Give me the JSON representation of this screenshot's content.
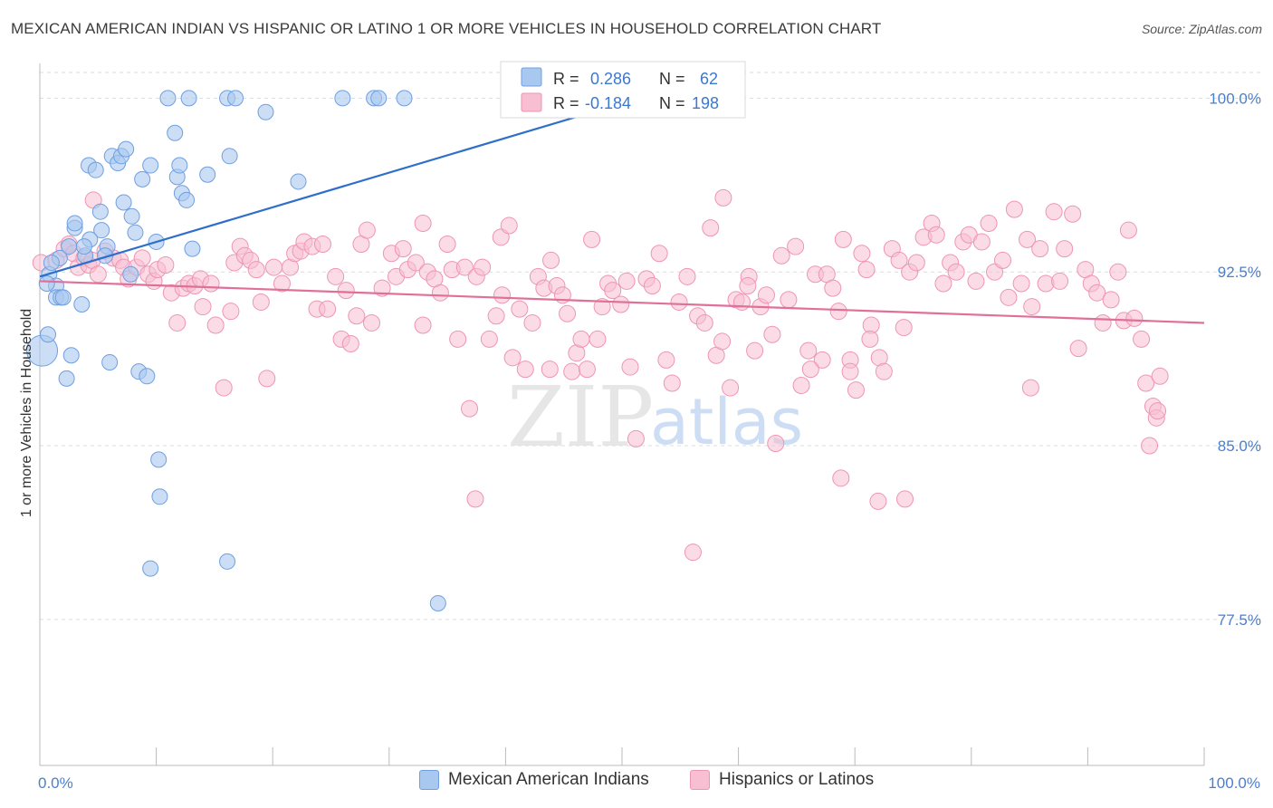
{
  "title": "MEXICAN AMERICAN INDIAN VS HISPANIC OR LATINO 1 OR MORE VEHICLES IN HOUSEHOLD CORRELATION CHART",
  "source": "Source: ZipAtlas.com",
  "watermark": {
    "zip": "ZIP",
    "atlas": "atlas"
  },
  "colors": {
    "blue_fill": "#a9c8f0",
    "blue_stroke": "#6f9fe0",
    "blue_line": "#2f6fca",
    "pink_fill": "#f7bfd1",
    "pink_stroke": "#ee95b2",
    "pink_line": "#e0709a",
    "tick_text": "#4a7fd0",
    "grid": "#dcdcdc"
  },
  "legend": {
    "series1": {
      "r_label": "R =",
      "r_value": "0.286",
      "n_label": "N =",
      "n_value": "62"
    },
    "series2": {
      "r_label": "R =",
      "r_value": "-0.184",
      "n_label": "N =",
      "n_value": "198"
    }
  },
  "bottom_legend": {
    "series1": "Mexican American Indians",
    "series2": "Hispanics or Latinos"
  },
  "chart_data": {
    "type": "scatter",
    "title": "MEXICAN AMERICAN INDIAN VS HISPANIC OR LATINO 1 OR MORE VEHICLES IN HOUSEHOLD CORRELATION CHART",
    "xlabel": "",
    "ylabel": "1 or more Vehicles in Household",
    "xlim": [
      0,
      100
    ],
    "ylim": [
      71.2,
      101.5
    ],
    "x_tick_labels": [
      "0.0%",
      "100.0%"
    ],
    "y_ticks": [
      100.0,
      92.5,
      85.0,
      77.5
    ],
    "y_tick_labels": [
      "100.0%",
      "92.5%",
      "85.0%",
      "77.5%"
    ],
    "grid": true,
    "series": [
      {
        "name": "Mexican American Indians",
        "r": 0.286,
        "n": 62,
        "trend": {
          "x": [
            0,
            51.5
          ],
          "y": [
            92.3,
            100.0
          ]
        },
        "points": [
          [
            0.2,
            89.1
          ],
          [
            0.7,
            89.8
          ],
          [
            0.8,
            92.4
          ],
          [
            1.4,
            91.9
          ],
          [
            1.4,
            91.4
          ],
          [
            1.8,
            91.4
          ],
          [
            1.7,
            93.1
          ],
          [
            2.3,
            87.9
          ],
          [
            2.7,
            88.9
          ],
          [
            3.0,
            94.4
          ],
          [
            3.0,
            94.6
          ],
          [
            3.6,
            91.1
          ],
          [
            3.9,
            93.2
          ],
          [
            4.2,
            97.1
          ],
          [
            4.8,
            96.9
          ],
          [
            5.2,
            95.1
          ],
          [
            5.3,
            94.3
          ],
          [
            5.8,
            93.6
          ],
          [
            6.0,
            88.6
          ],
          [
            6.2,
            97.5
          ],
          [
            6.7,
            97.2
          ],
          [
            7.0,
            97.5
          ],
          [
            7.2,
            95.5
          ],
          [
            7.4,
            97.8
          ],
          [
            7.8,
            92.4
          ],
          [
            7.9,
            94.9
          ],
          [
            8.2,
            94.2
          ],
          [
            8.5,
            88.2
          ],
          [
            8.8,
            96.5
          ],
          [
            9.2,
            88.0
          ],
          [
            9.5,
            97.1
          ],
          [
            10.0,
            93.8
          ],
          [
            10.2,
            84.4
          ],
          [
            10.3,
            82.8
          ],
          [
            11.0,
            100.0
          ],
          [
            11.6,
            98.5
          ],
          [
            11.8,
            96.6
          ],
          [
            12.0,
            97.1
          ],
          [
            12.2,
            95.9
          ],
          [
            12.6,
            95.6
          ],
          [
            12.8,
            100.0
          ],
          [
            13.1,
            93.5
          ],
          [
            14.4,
            96.7
          ],
          [
            16.3,
            97.5
          ],
          [
            16.1,
            80.0
          ],
          [
            16.1,
            100.0
          ],
          [
            16.8,
            100.0
          ],
          [
            19.4,
            99.4
          ],
          [
            22.2,
            96.4
          ],
          [
            26.0,
            100.0
          ],
          [
            28.7,
            100.0
          ],
          [
            29.1,
            100.0
          ],
          [
            31.3,
            100.0
          ],
          [
            34.2,
            78.2
          ],
          [
            9.5,
            79.7
          ],
          [
            4.3,
            93.9
          ],
          [
            2.5,
            93.6
          ],
          [
            1.0,
            92.9
          ],
          [
            5.6,
            93.2
          ],
          [
            3.8,
            93.6
          ],
          [
            2.0,
            91.4
          ],
          [
            0.6,
            92.0
          ]
        ],
        "big_point": [
          0.2,
          89.1
        ]
      },
      {
        "name": "Hispanics or Latinos",
        "r": -0.184,
        "n": 198,
        "trend": {
          "x": [
            0,
            100
          ],
          "y": [
            92.1,
            90.3
          ]
        },
        "points": [
          [
            0.1,
            92.9
          ],
          [
            1.4,
            93.0
          ],
          [
            2.1,
            93.5
          ],
          [
            2.5,
            93.7
          ],
          [
            2.9,
            93.3
          ],
          [
            3.3,
            92.7
          ],
          [
            3.8,
            93.1
          ],
          [
            4.2,
            92.8
          ],
          [
            4.5,
            93.0
          ],
          [
            5.0,
            92.4
          ],
          [
            5.6,
            93.4
          ],
          [
            6.3,
            93.1
          ],
          [
            6.9,
            93.0
          ],
          [
            7.2,
            92.7
          ],
          [
            7.6,
            92.2
          ],
          [
            8.3,
            92.7
          ],
          [
            8.8,
            93.1
          ],
          [
            9.3,
            92.4
          ],
          [
            9.8,
            92.1
          ],
          [
            10.1,
            92.6
          ],
          [
            10.8,
            92.8
          ],
          [
            11.3,
            91.6
          ],
          [
            11.8,
            90.3
          ],
          [
            12.3,
            91.8
          ],
          [
            12.8,
            92.0
          ],
          [
            13.3,
            91.9
          ],
          [
            13.8,
            92.2
          ],
          [
            14.0,
            91.0
          ],
          [
            14.7,
            92.0
          ],
          [
            15.1,
            90.2
          ],
          [
            15.8,
            87.5
          ],
          [
            16.4,
            90.8
          ],
          [
            16.7,
            92.9
          ],
          [
            17.2,
            93.6
          ],
          [
            17.6,
            93.2
          ],
          [
            18.1,
            93.0
          ],
          [
            18.6,
            92.6
          ],
          [
            19.0,
            91.2
          ],
          [
            19.5,
            87.9
          ],
          [
            20.1,
            92.7
          ],
          [
            20.8,
            92.0
          ],
          [
            21.5,
            92.7
          ],
          [
            21.9,
            93.3
          ],
          [
            22.4,
            93.4
          ],
          [
            22.7,
            93.8
          ],
          [
            23.4,
            93.6
          ],
          [
            23.8,
            90.9
          ],
          [
            24.3,
            93.7
          ],
          [
            24.7,
            90.9
          ],
          [
            25.4,
            92.3
          ],
          [
            25.9,
            89.6
          ],
          [
            26.3,
            91.7
          ],
          [
            26.7,
            89.4
          ],
          [
            27.2,
            90.6
          ],
          [
            27.6,
            93.7
          ],
          [
            28.1,
            94.3
          ],
          [
            28.5,
            90.3
          ],
          [
            29.4,
            91.8
          ],
          [
            30.2,
            93.3
          ],
          [
            30.6,
            92.3
          ],
          [
            31.2,
            93.5
          ],
          [
            31.6,
            92.6
          ],
          [
            32.3,
            92.9
          ],
          [
            32.9,
            90.2
          ],
          [
            33.3,
            92.5
          ],
          [
            33.9,
            92.2
          ],
          [
            34.4,
            91.6
          ],
          [
            35.0,
            93.7
          ],
          [
            35.4,
            92.6
          ],
          [
            35.9,
            89.6
          ],
          [
            36.5,
            92.7
          ],
          [
            36.9,
            86.6
          ],
          [
            37.5,
            92.3
          ],
          [
            38.0,
            92.7
          ],
          [
            38.6,
            89.6
          ],
          [
            39.2,
            90.6
          ],
          [
            39.6,
            94.0
          ],
          [
            40.3,
            94.5
          ],
          [
            40.6,
            88.8
          ],
          [
            41.2,
            90.9
          ],
          [
            41.7,
            88.3
          ],
          [
            42.3,
            90.3
          ],
          [
            42.8,
            92.3
          ],
          [
            43.3,
            91.8
          ],
          [
            43.9,
            93.0
          ],
          [
            44.4,
            91.9
          ],
          [
            44.9,
            91.5
          ],
          [
            45.3,
            90.7
          ],
          [
            45.7,
            88.2
          ],
          [
            46.1,
            89.0
          ],
          [
            46.5,
            89.6
          ],
          [
            47.0,
            88.3
          ],
          [
            47.4,
            93.9
          ],
          [
            47.9,
            89.6
          ],
          [
            48.3,
            91.0
          ],
          [
            48.8,
            92.0
          ],
          [
            49.2,
            91.7
          ],
          [
            49.9,
            91.1
          ],
          [
            50.4,
            92.1
          ],
          [
            50.7,
            88.4
          ],
          [
            51.2,
            85.3
          ],
          [
            52.1,
            92.2
          ],
          [
            52.6,
            91.9
          ],
          [
            53.2,
            93.3
          ],
          [
            53.8,
            88.7
          ],
          [
            54.3,
            87.7
          ],
          [
            54.9,
            91.2
          ],
          [
            55.6,
            92.3
          ],
          [
            56.1,
            80.4
          ],
          [
            56.5,
            90.6
          ],
          [
            57.1,
            90.3
          ],
          [
            57.6,
            94.4
          ],
          [
            58.1,
            88.9
          ],
          [
            58.6,
            89.5
          ],
          [
            59.3,
            87.5
          ],
          [
            59.8,
            91.3
          ],
          [
            60.3,
            91.2
          ],
          [
            60.9,
            92.3
          ],
          [
            61.4,
            89.1
          ],
          [
            61.9,
            91.0
          ],
          [
            62.4,
            91.5
          ],
          [
            62.9,
            89.8
          ],
          [
            63.7,
            93.2
          ],
          [
            64.3,
            91.3
          ],
          [
            64.9,
            93.6
          ],
          [
            65.4,
            87.6
          ],
          [
            66.0,
            89.1
          ],
          [
            66.6,
            92.4
          ],
          [
            67.2,
            88.7
          ],
          [
            67.6,
            92.4
          ],
          [
            68.1,
            91.8
          ],
          [
            68.6,
            90.8
          ],
          [
            69.0,
            93.9
          ],
          [
            69.6,
            88.7
          ],
          [
            70.1,
            87.4
          ],
          [
            70.6,
            93.3
          ],
          [
            71.0,
            92.6
          ],
          [
            71.4,
            90.2
          ],
          [
            72.1,
            88.8
          ],
          [
            72.5,
            88.2
          ],
          [
            73.2,
            93.5
          ],
          [
            73.8,
            93.0
          ],
          [
            74.2,
            90.1
          ],
          [
            74.7,
            92.5
          ],
          [
            75.3,
            92.9
          ],
          [
            75.9,
            94.0
          ],
          [
            76.6,
            94.6
          ],
          [
            77.0,
            94.1
          ],
          [
            77.6,
            92.0
          ],
          [
            78.2,
            92.9
          ],
          [
            78.7,
            92.5
          ],
          [
            79.3,
            93.8
          ],
          [
            79.8,
            94.1
          ],
          [
            80.4,
            92.1
          ],
          [
            80.9,
            93.8
          ],
          [
            81.5,
            94.6
          ],
          [
            82.0,
            92.5
          ],
          [
            82.7,
            93.0
          ],
          [
            83.2,
            91.4
          ],
          [
            83.7,
            95.2
          ],
          [
            84.3,
            92.0
          ],
          [
            84.8,
            93.9
          ],
          [
            85.2,
            91.0
          ],
          [
            85.9,
            93.5
          ],
          [
            86.4,
            92.0
          ],
          [
            87.1,
            95.1
          ],
          [
            87.6,
            92.1
          ],
          [
            88.0,
            93.5
          ],
          [
            88.7,
            95.0
          ],
          [
            89.2,
            89.2
          ],
          [
            89.8,
            92.6
          ],
          [
            90.3,
            92.0
          ],
          [
            90.8,
            91.6
          ],
          [
            91.3,
            90.3
          ],
          [
            92.0,
            91.3
          ],
          [
            92.6,
            92.5
          ],
          [
            93.1,
            90.4
          ],
          [
            93.5,
            94.3
          ],
          [
            94.0,
            90.5
          ],
          [
            94.6,
            89.6
          ],
          [
            95.0,
            87.7
          ],
          [
            95.6,
            86.7
          ],
          [
            95.9,
            86.2
          ],
          [
            96.2,
            88.0
          ],
          [
            96.0,
            86.5
          ],
          [
            95.3,
            85.0
          ],
          [
            4.6,
            95.6
          ],
          [
            39.7,
            91.5
          ],
          [
            63.2,
            85.1
          ],
          [
            85.1,
            87.5
          ],
          [
            68.8,
            83.6
          ],
          [
            71.3,
            89.6
          ],
          [
            72.0,
            82.6
          ],
          [
            66.2,
            88.3
          ],
          [
            74.3,
            82.7
          ],
          [
            69.6,
            88.2
          ],
          [
            60.8,
            91.9
          ],
          [
            37.4,
            82.7
          ],
          [
            43.8,
            88.3
          ],
          [
            58.7,
            95.7
          ],
          [
            32.9,
            94.6
          ]
        ]
      }
    ]
  }
}
